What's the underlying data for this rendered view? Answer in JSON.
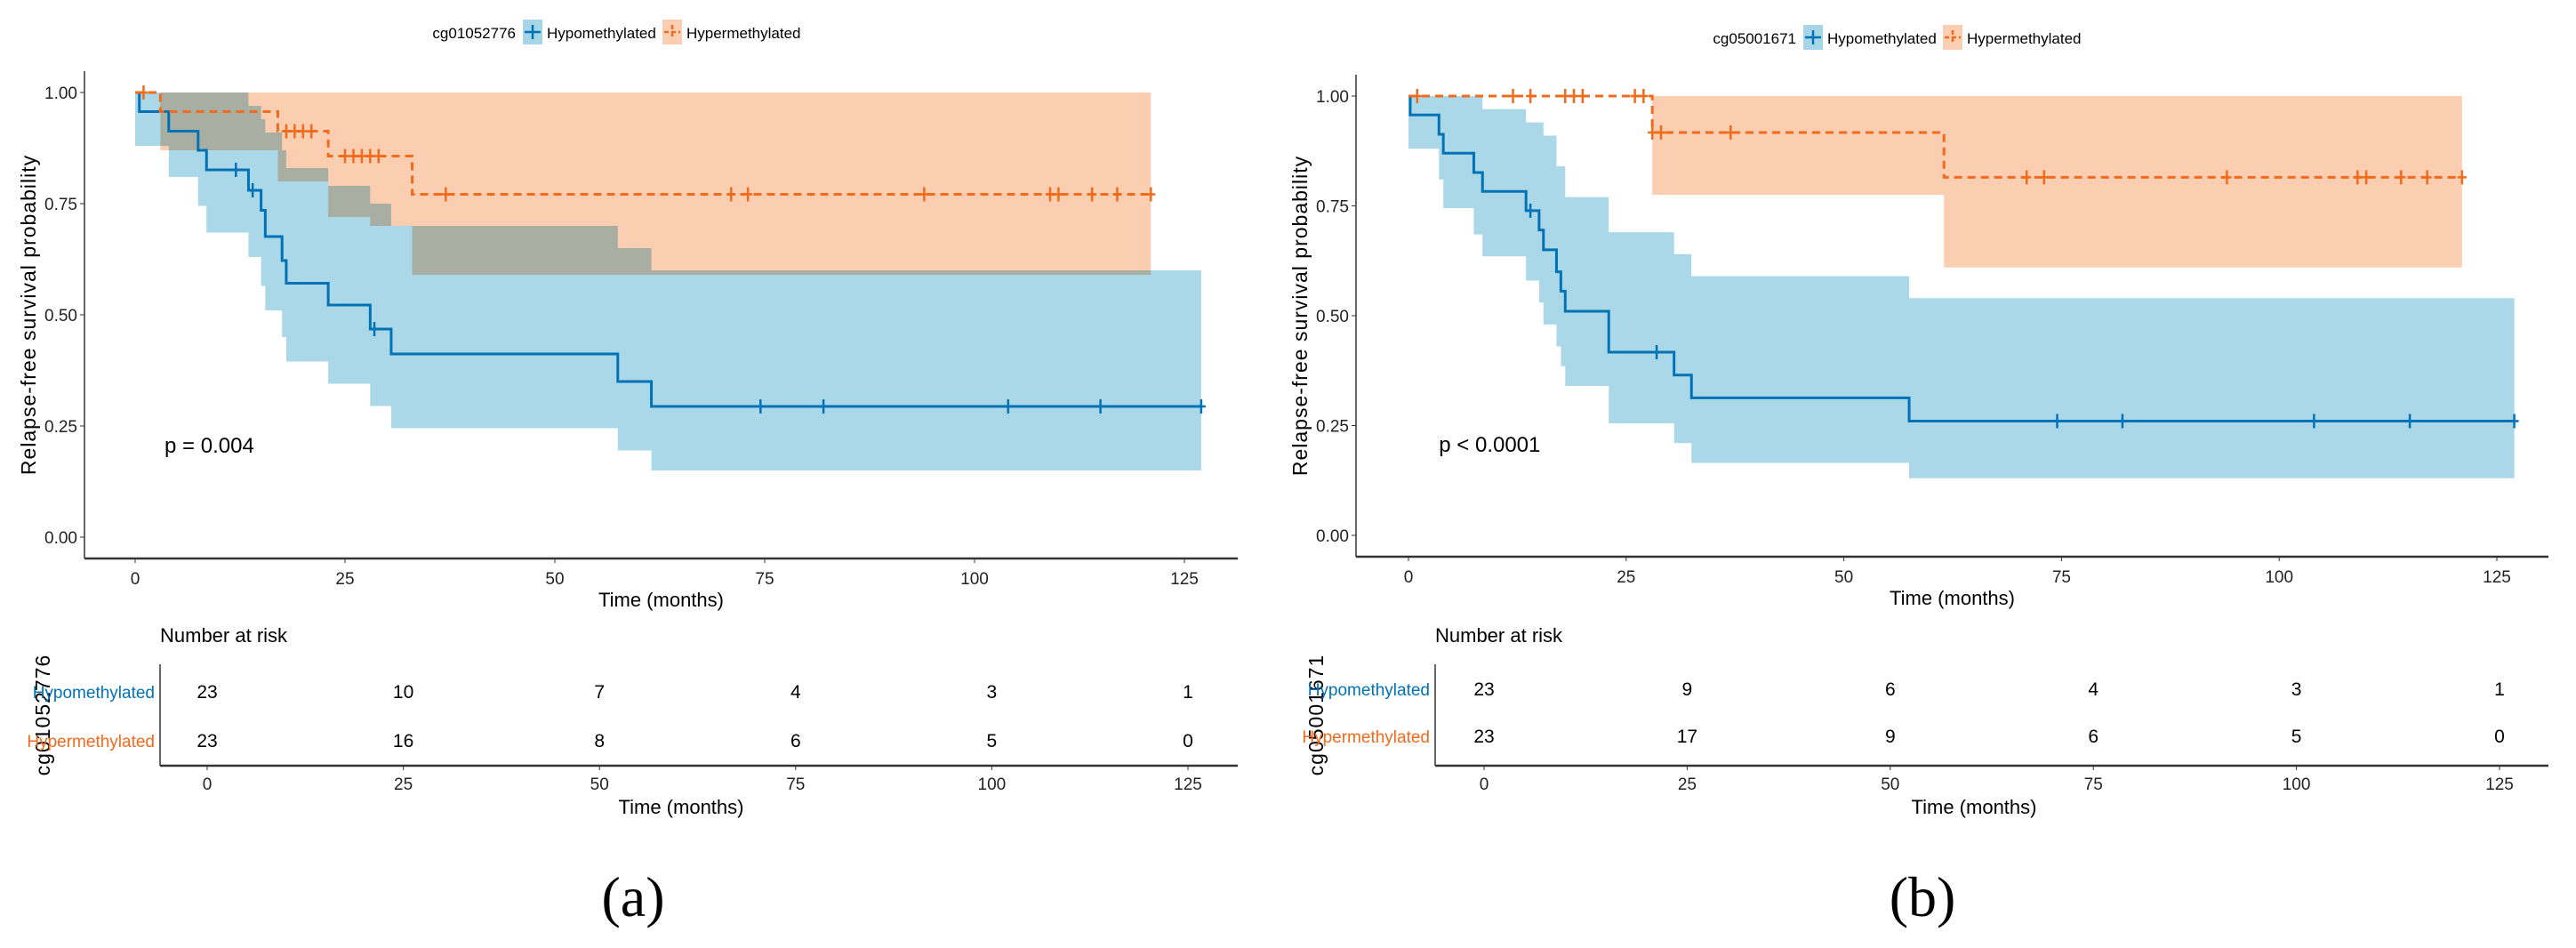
{
  "colors": {
    "hypo": "#0072B5",
    "hypo_band": "#A6D6E8",
    "hyper": "#F26A1B",
    "hyper_band": "#FBCEB1",
    "overlap": "#C4B3A3"
  },
  "chart_data": [
    {
      "type": "line",
      "subtype": "kaplan-meier",
      "panel_label": "(a)",
      "legend_title": "cg01052776",
      "legend_placement": "top-center",
      "xlabel": "Time (months)",
      "ylabel": "Relapse-free survival probability",
      "xlim": [
        0,
        130
      ],
      "ylim": [
        0,
        1
      ],
      "xticks": [
        "0",
        "25",
        "50",
        "75",
        "100",
        "125"
      ],
      "yticks": [
        "0.00",
        "0.25",
        "0.50",
        "0.75",
        "1.00"
      ],
      "pvalue": "p = 0.004",
      "series": [
        {
          "name": "Hypomethylated",
          "key": "hypo",
          "steps": [
            [
              0,
              1.0
            ],
            [
              0.5,
              0.957
            ],
            [
              4,
              0.913
            ],
            [
              7.5,
              0.87
            ],
            [
              8.5,
              0.826
            ],
            [
              13.5,
              0.78
            ],
            [
              15,
              0.735
            ],
            [
              15.5,
              0.676
            ],
            [
              17.5,
              0.622
            ],
            [
              18,
              0.571
            ],
            [
              23,
              0.522
            ],
            [
              28,
              0.468
            ],
            [
              30.5,
              0.412
            ],
            [
              57.5,
              0.35
            ],
            [
              61.5,
              0.294
            ],
            [
              127,
              0.294
            ]
          ],
          "lower": [
            [
              0,
              0.88
            ],
            [
              4,
              0.81
            ],
            [
              7.5,
              0.745
            ],
            [
              8.5,
              0.685
            ],
            [
              13.5,
              0.63
            ],
            [
              15,
              0.565
            ],
            [
              15.5,
              0.51
            ],
            [
              17.5,
              0.45
            ],
            [
              18,
              0.395
            ],
            [
              23,
              0.345
            ],
            [
              28,
              0.295
            ],
            [
              30.5,
              0.245
            ],
            [
              57.5,
              0.195
            ],
            [
              61.5,
              0.15
            ],
            [
              127,
              0.15
            ]
          ],
          "upper": [
            [
              0,
              1.0
            ],
            [
              13.5,
              0.97
            ],
            [
              15,
              0.94
            ],
            [
              15.5,
              0.91
            ],
            [
              17.5,
              0.87
            ],
            [
              18,
              0.83
            ],
            [
              23,
              0.79
            ],
            [
              28,
              0.75
            ],
            [
              30.5,
              0.7
            ],
            [
              57.5,
              0.65
            ],
            [
              61.5,
              0.6
            ],
            [
              127,
              0.6
            ]
          ],
          "censored": [
            12,
            14,
            28.5,
            74.5,
            82,
            104,
            115,
            127
          ]
        },
        {
          "name": "Hypermethylated",
          "key": "hyper",
          "steps": [
            [
              0,
              1.0
            ],
            [
              3,
              0.957
            ],
            [
              17,
              0.913
            ],
            [
              23,
              0.857
            ],
            [
              33,
              0.771
            ],
            [
              121,
              0.771
            ]
          ],
          "lower": [
            [
              3,
              0.87
            ],
            [
              17,
              0.8
            ],
            [
              23,
              0.72
            ],
            [
              28,
              0.7
            ],
            [
              33,
              0.59
            ],
            [
              121,
              0.59
            ]
          ],
          "upper": [
            [
              3,
              1.0
            ],
            [
              121,
              1.0
            ]
          ],
          "censored": [
            1,
            18,
            19,
            20,
            21,
            25,
            26,
            27,
            28,
            29,
            37,
            71,
            73,
            94,
            109,
            110,
            114,
            117,
            121
          ]
        }
      ],
      "risk_table": {
        "title": "Number at risk",
        "strata_title": "cg01052776",
        "times": [
          "0",
          "25",
          "50",
          "75",
          "100",
          "125"
        ],
        "rows": [
          {
            "name": "Hypomethylated",
            "key": "hypo",
            "values": [
              "23",
              "10",
              "7",
              "4",
              "3",
              "1"
            ]
          },
          {
            "name": "Hypermethylated",
            "key": "hyper",
            "values": [
              "23",
              "16",
              "8",
              "6",
              "5",
              "0"
            ]
          }
        ],
        "xlabel": "Time (months)"
      }
    },
    {
      "type": "line",
      "subtype": "kaplan-meier",
      "panel_label": "(b)",
      "legend_title": "cg05001671",
      "legend_placement": "top-center",
      "xlabel": "Time (months)",
      "ylabel": "Relapse-free survival probability",
      "xlim": [
        0,
        130
      ],
      "ylim": [
        0,
        1
      ],
      "xticks": [
        "0",
        "25",
        "50",
        "75",
        "100",
        "125"
      ],
      "yticks": [
        "0.00",
        "0.25",
        "0.50",
        "0.75",
        "1.00"
      ],
      "pvalue": "p < 0.0001",
      "series": [
        {
          "name": "Hypomethylated",
          "key": "hypo",
          "steps": [
            [
              0,
              1.0
            ],
            [
              0.2,
              0.957
            ],
            [
              3.5,
              0.913
            ],
            [
              4,
              0.87
            ],
            [
              7.5,
              0.826
            ],
            [
              8.5,
              0.783
            ],
            [
              13.5,
              0.739
            ],
            [
              15,
              0.695
            ],
            [
              15.5,
              0.65
            ],
            [
              17,
              0.6
            ],
            [
              17.5,
              0.556
            ],
            [
              18,
              0.51
            ],
            [
              23,
              0.417
            ],
            [
              30.5,
              0.365
            ],
            [
              32.5,
              0.313
            ],
            [
              57.5,
              0.26
            ],
            [
              127,
              0.26
            ]
          ],
          "lower": [
            [
              0,
              0.88
            ],
            [
              3.5,
              0.81
            ],
            [
              4,
              0.745
            ],
            [
              7.5,
              0.685
            ],
            [
              8.5,
              0.635
            ],
            [
              13.5,
              0.58
            ],
            [
              15,
              0.53
            ],
            [
              15.5,
              0.48
            ],
            [
              17,
              0.43
            ],
            [
              17.5,
              0.385
            ],
            [
              18,
              0.34
            ],
            [
              23,
              0.255
            ],
            [
              30.5,
              0.21
            ],
            [
              32.5,
              0.165
            ],
            [
              57.5,
              0.13
            ],
            [
              127,
              0.13
            ]
          ],
          "upper": [
            [
              0,
              1.0
            ],
            [
              8.5,
              0.97
            ],
            [
              13.5,
              0.94
            ],
            [
              15.5,
              0.91
            ],
            [
              17,
              0.84
            ],
            [
              18,
              0.77
            ],
            [
              23,
              0.69
            ],
            [
              30.5,
              0.64
            ],
            [
              32.5,
              0.59
            ],
            [
              57.5,
              0.54
            ],
            [
              127,
              0.54
            ]
          ],
          "censored": [
            14,
            28.5,
            74.5,
            82,
            104,
            115,
            127
          ]
        },
        {
          "name": "Hypermethylated",
          "key": "hyper",
          "steps": [
            [
              0,
              1.0
            ],
            [
              28,
              0.917
            ],
            [
              61.5,
              0.815
            ],
            [
              121,
              0.815
            ]
          ],
          "lower": [
            [
              28,
              0.775
            ],
            [
              61.5,
              0.61
            ],
            [
              121,
              0.61
            ]
          ],
          "upper": [
            [
              28,
              1.0
            ],
            [
              121,
              1.0
            ]
          ],
          "censored": [
            1,
            12,
            14,
            18,
            19,
            20,
            26,
            27,
            28,
            29,
            37,
            71,
            73,
            94,
            109,
            110,
            114,
            117,
            121
          ]
        }
      ],
      "risk_table": {
        "title": "Number at risk",
        "strata_title": "cg05001671",
        "times": [
          "0",
          "25",
          "50",
          "75",
          "100",
          "125"
        ],
        "rows": [
          {
            "name": "Hypomethylated",
            "key": "hypo",
            "values": [
              "23",
              "9",
              "6",
              "4",
              "3",
              "1"
            ]
          },
          {
            "name": "Hypermethylated",
            "key": "hyper",
            "values": [
              "23",
              "17",
              "9",
              "6",
              "5",
              "0"
            ]
          }
        ],
        "xlabel": "Time (months)"
      }
    }
  ]
}
